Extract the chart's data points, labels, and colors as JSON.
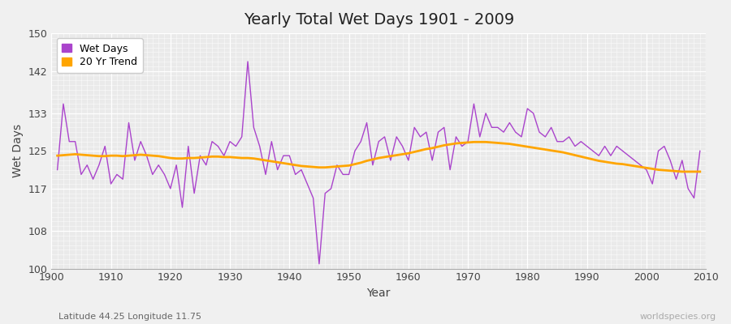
{
  "title": "Yearly Total Wet Days 1901 - 2009",
  "xlabel": "Year",
  "ylabel": "Wet Days",
  "subtitle_left": "Latitude 44.25 Longitude 11.75",
  "subtitle_right": "worldspecies.org",
  "ylim": [
    100,
    150
  ],
  "yticks": [
    100,
    108,
    117,
    125,
    133,
    142,
    150
  ],
  "line_color": "#aa44cc",
  "trend_color": "#FFA500",
  "background_color": "#f5f5f5",
  "plot_bg_color": "#e8e8ec",
  "legend_labels": [
    "Wet Days",
    "20 Yr Trend"
  ],
  "years": [
    1901,
    1902,
    1903,
    1904,
    1905,
    1906,
    1907,
    1908,
    1909,
    1910,
    1911,
    1912,
    1913,
    1914,
    1915,
    1916,
    1917,
    1918,
    1919,
    1920,
    1921,
    1922,
    1923,
    1924,
    1925,
    1926,
    1927,
    1928,
    1929,
    1930,
    1931,
    1932,
    1933,
    1934,
    1935,
    1936,
    1937,
    1938,
    1939,
    1940,
    1941,
    1942,
    1943,
    1944,
    1945,
    1946,
    1947,
    1948,
    1949,
    1950,
    1951,
    1952,
    1953,
    1954,
    1955,
    1956,
    1957,
    1958,
    1959,
    1960,
    1961,
    1962,
    1963,
    1964,
    1965,
    1966,
    1967,
    1968,
    1969,
    1970,
    1971,
    1972,
    1973,
    1974,
    1975,
    1976,
    1977,
    1978,
    1979,
    1980,
    1981,
    1982,
    1983,
    1984,
    1985,
    1986,
    1987,
    1988,
    1989,
    1990,
    1991,
    1992,
    1993,
    1994,
    1995,
    1996,
    1997,
    1998,
    1999,
    2000,
    2001,
    2002,
    2003,
    2004,
    2005,
    2006,
    2007,
    2008,
    2009
  ],
  "wet_days": [
    121,
    135,
    127,
    127,
    120,
    122,
    119,
    122,
    126,
    118,
    120,
    119,
    131,
    123,
    127,
    124,
    120,
    122,
    120,
    117,
    122,
    113,
    126,
    116,
    124,
    122,
    127,
    126,
    124,
    127,
    126,
    128,
    144,
    130,
    126,
    120,
    127,
    121,
    124,
    124,
    120,
    121,
    118,
    115,
    101,
    116,
    117,
    122,
    120,
    120,
    125,
    127,
    131,
    122,
    127,
    128,
    123,
    128,
    126,
    123,
    130,
    128,
    129,
    123,
    129,
    130,
    121,
    128,
    126,
    127,
    135,
    128,
    133,
    130,
    130,
    129,
    131,
    129,
    128,
    134,
    133,
    129,
    128,
    130,
    127,
    127,
    128,
    126,
    127,
    126,
    125,
    124,
    126,
    124,
    126,
    125,
    124,
    123,
    122,
    121,
    118,
    125,
    126,
    123,
    119,
    123,
    117,
    115,
    125
  ],
  "trend": [
    124.0,
    124.1,
    124.2,
    124.3,
    124.2,
    124.1,
    124.0,
    123.9,
    123.9,
    124.0,
    124.0,
    123.9,
    124.0,
    124.1,
    124.2,
    124.1,
    124.0,
    123.9,
    123.7,
    123.5,
    123.4,
    123.4,
    123.5,
    123.5,
    123.6,
    123.7,
    123.8,
    123.8,
    123.7,
    123.7,
    123.6,
    123.5,
    123.5,
    123.4,
    123.2,
    123.0,
    122.8,
    122.6,
    122.4,
    122.2,
    122.0,
    121.8,
    121.7,
    121.6,
    121.5,
    121.5,
    121.6,
    121.7,
    121.8,
    121.9,
    122.2,
    122.5,
    122.9,
    123.2,
    123.5,
    123.7,
    123.9,
    124.1,
    124.3,
    124.5,
    124.8,
    125.1,
    125.4,
    125.6,
    125.9,
    126.2,
    126.4,
    126.6,
    126.7,
    126.8,
    126.9,
    126.9,
    126.9,
    126.8,
    126.7,
    126.6,
    126.5,
    126.3,
    126.1,
    125.9,
    125.7,
    125.5,
    125.3,
    125.1,
    124.9,
    124.7,
    124.4,
    124.1,
    123.8,
    123.5,
    123.2,
    122.9,
    122.7,
    122.5,
    122.3,
    122.2,
    122.0,
    121.8,
    121.6,
    121.4,
    121.2,
    121.0,
    120.9,
    120.8,
    120.7,
    120.6,
    120.6,
    120.6,
    120.6
  ]
}
